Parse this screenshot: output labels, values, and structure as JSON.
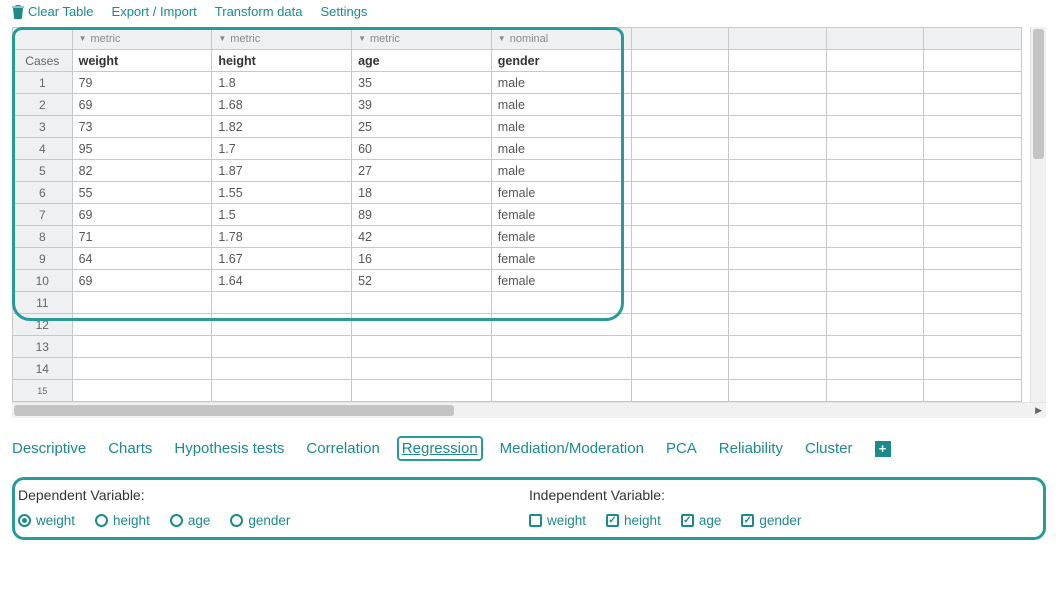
{
  "toolbar": {
    "clear": "Clear Table",
    "export": "Export / Import",
    "transform": "Transform data",
    "settings": "Settings"
  },
  "column_types": [
    "metric",
    "metric",
    "metric",
    "nominal"
  ],
  "var_header": "Cases",
  "variables": [
    "weight",
    "height",
    "age",
    "gender"
  ],
  "rows": [
    [
      "79",
      "1.8",
      "35",
      "male"
    ],
    [
      "69",
      "1.68",
      "39",
      "male"
    ],
    [
      "73",
      "1.82",
      "25",
      "male"
    ],
    [
      "95",
      "1.7",
      "60",
      "male"
    ],
    [
      "82",
      "1.87",
      "27",
      "male"
    ],
    [
      "55",
      "1.55",
      "18",
      "female"
    ],
    [
      "69",
      "1.5",
      "89",
      "female"
    ],
    [
      "71",
      "1.78",
      "42",
      "female"
    ],
    [
      "64",
      "1.67",
      "16",
      "female"
    ],
    [
      "69",
      "1.64",
      "52",
      "female"
    ]
  ],
  "empty_row_count": 4,
  "empty_col_count": 4,
  "last_partial_row": 15,
  "tabs": {
    "items": [
      "Descriptive",
      "Charts",
      "Hypothesis tests",
      "Correlation",
      "Regression",
      "Mediation/Moderation",
      "PCA",
      "Reliability",
      "Cluster"
    ],
    "active": "Regression"
  },
  "vars_panel": {
    "dependent_label": "Dependent Variable:",
    "independent_label": "Independent Variable:",
    "dependent_selected": "weight",
    "independent_selected": [
      "height",
      "age",
      "gender"
    ]
  },
  "colors": {
    "accent": "#1c8a8a",
    "annotate": "#289a9a",
    "border": "#c8c8c8",
    "header_bg": "#eef0f1"
  }
}
